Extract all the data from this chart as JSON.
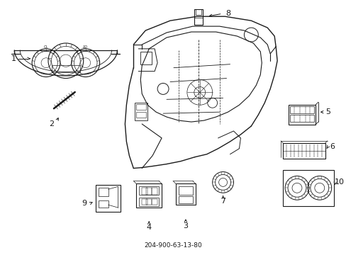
{
  "title": "204-900-63-13-80",
  "bg_color": "#ffffff",
  "line_color": "#1a1a1a",
  "font_size": 8,
  "line_width": 0.9,
  "figsize": [
    4.89,
    3.6
  ],
  "dpi": 100
}
